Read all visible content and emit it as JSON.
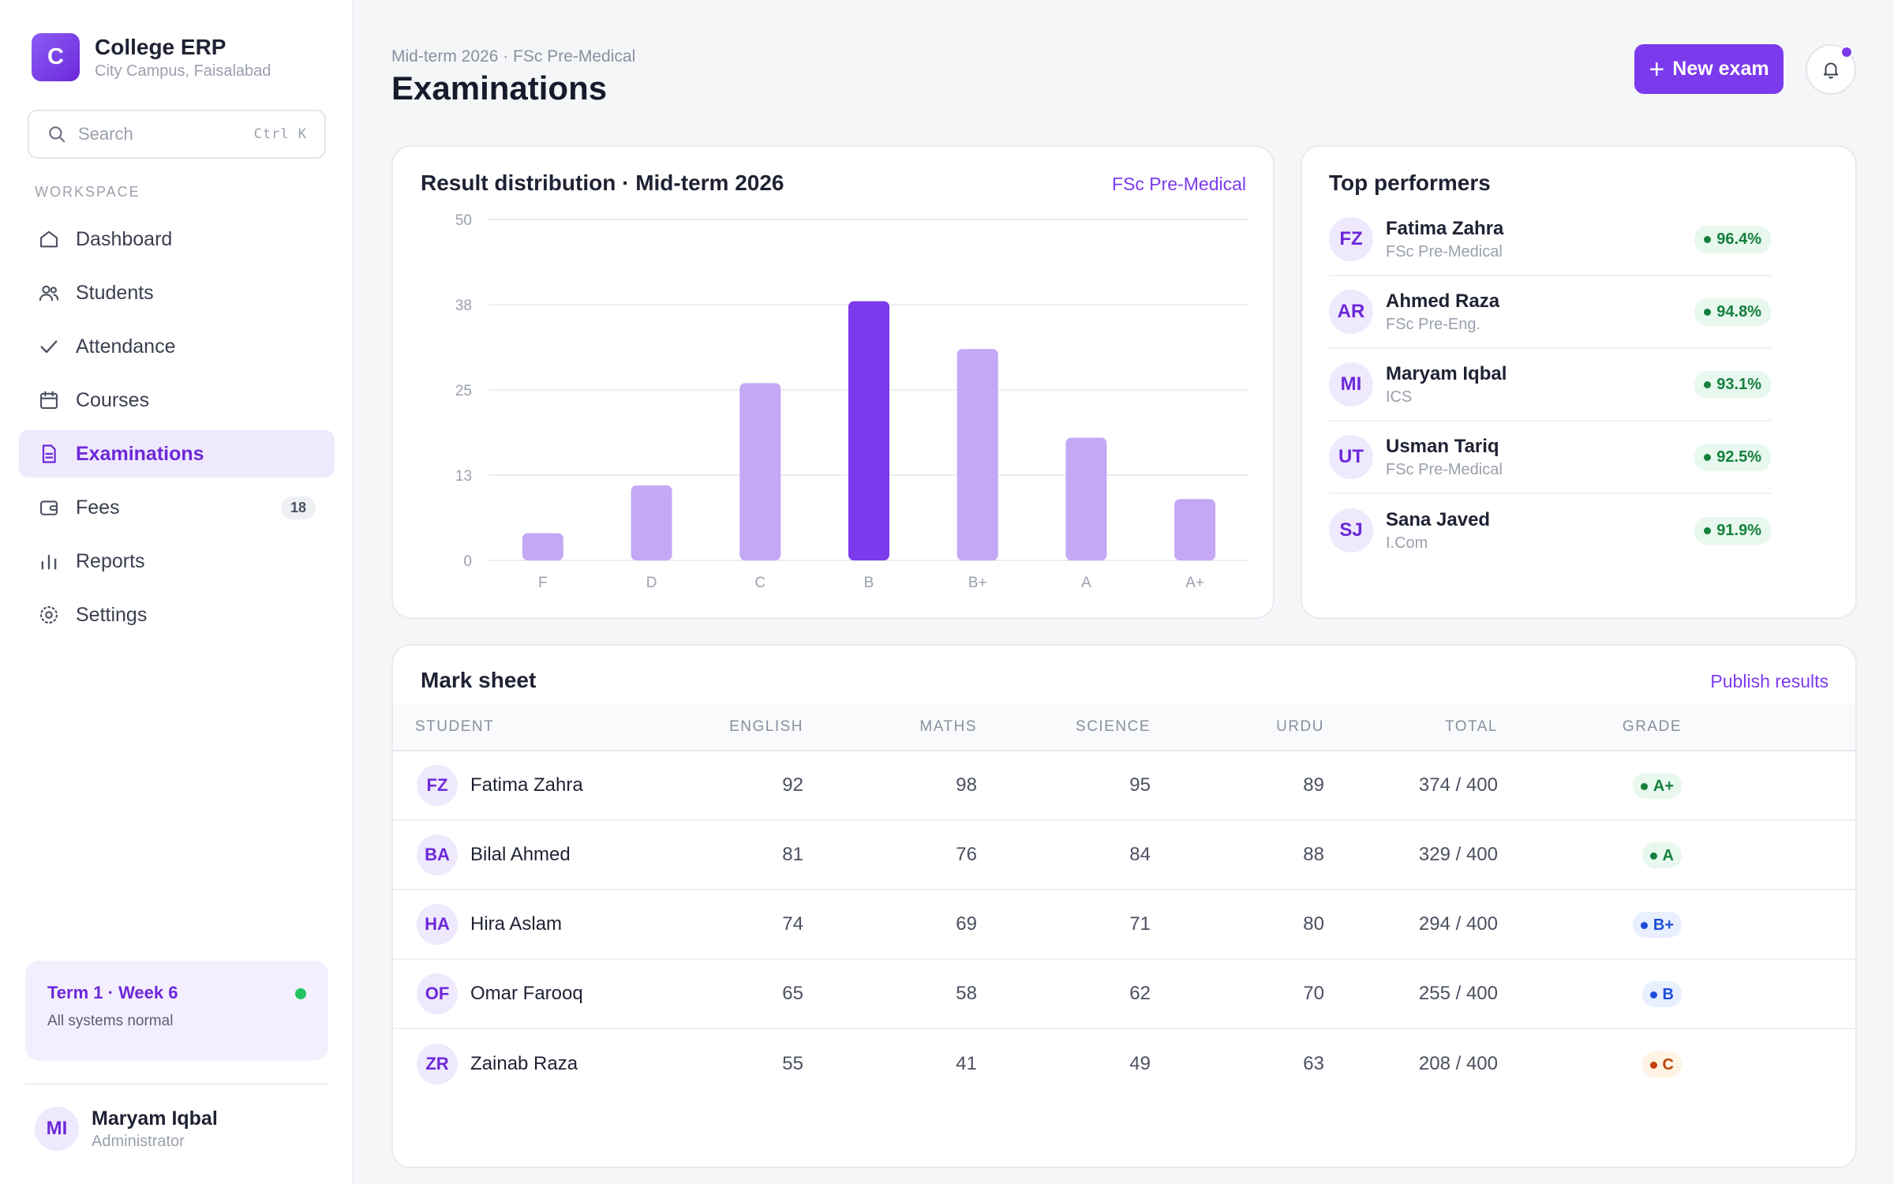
{
  "app": {
    "name": "College ERP",
    "campus": "City Campus, Faisalabad",
    "logo_letter": "C"
  },
  "search": {
    "placeholder": "Search",
    "shortcut": "Ctrl K"
  },
  "sidebar": {
    "section_label": "WORKSPACE",
    "items": [
      {
        "label": "Dashboard",
        "icon": "home-icon",
        "active": false
      },
      {
        "label": "Students",
        "icon": "users-icon",
        "active": false
      },
      {
        "label": "Attendance",
        "icon": "check-icon",
        "active": false
      },
      {
        "label": "Courses",
        "icon": "calendar-icon",
        "active": false
      },
      {
        "label": "Examinations",
        "icon": "document-icon",
        "active": true
      },
      {
        "label": "Fees",
        "icon": "wallet-icon",
        "active": false,
        "badge": "18"
      },
      {
        "label": "Reports",
        "icon": "bar-chart-icon",
        "active": false
      },
      {
        "label": "Settings",
        "icon": "gear-icon",
        "active": false
      }
    ],
    "status": {
      "title": "Term 1 · Week 6",
      "subtitle": "All systems normal",
      "indicator_color": "#22c55e"
    },
    "user": {
      "initials": "MI",
      "name": "Maryam Iqbal",
      "role": "Administrator"
    }
  },
  "header": {
    "breadcrumb": "Mid-term 2026 · FSc Pre-Medical",
    "title": "Examinations",
    "primary_action": "New exam",
    "notifications_unread": true
  },
  "chart_card": {
    "title": "Result distribution · Mid-term 2026",
    "filter_link": "FSc Pre-Medical"
  },
  "chart_data": {
    "type": "bar",
    "categories": [
      "F",
      "D",
      "C",
      "B",
      "B+",
      "A",
      "A+"
    ],
    "values": [
      4,
      11,
      26,
      38,
      31,
      18,
      9
    ],
    "highlight_index": 3,
    "ylim": [
      0,
      50
    ],
    "yticks": [
      "0",
      "13",
      "25",
      "38",
      "50"
    ],
    "ytick_values": [
      0,
      12.5,
      25,
      37.5,
      50
    ],
    "grid": true,
    "colors": {
      "bar": "#c4a8f5",
      "highlight": "#7c3aed"
    }
  },
  "performers": {
    "title": "Top performers",
    "items": [
      {
        "initials": "FZ",
        "name": "Fatima Zahra",
        "program": "FSc Pre-Medical",
        "score": "96.4%"
      },
      {
        "initials": "AR",
        "name": "Ahmed Raza",
        "program": "FSc Pre-Eng.",
        "score": "94.8%"
      },
      {
        "initials": "MI",
        "name": "Maryam Iqbal",
        "program": "ICS",
        "score": "93.1%"
      },
      {
        "initials": "UT",
        "name": "Usman Tariq",
        "program": "FSc Pre-Medical",
        "score": "92.5%"
      },
      {
        "initials": "SJ",
        "name": "Sana Javed",
        "program": "I.Com",
        "score": "91.9%"
      }
    ]
  },
  "mark_sheet": {
    "title": "Mark sheet",
    "action": "Publish results",
    "columns": [
      "STUDENT",
      "ENGLISH",
      "MATHS",
      "SCIENCE",
      "URDU",
      "TOTAL",
      "GRADE"
    ],
    "rows": [
      {
        "initials": "FZ",
        "name": "Fatima Zahra",
        "english": "92",
        "maths": "98",
        "science": "95",
        "urdu": "89",
        "total": "374 / 400",
        "grade": "A+",
        "grade_color": "green"
      },
      {
        "initials": "BA",
        "name": "Bilal Ahmed",
        "english": "81",
        "maths": "76",
        "science": "84",
        "urdu": "88",
        "total": "329 / 400",
        "grade": "A",
        "grade_color": "green"
      },
      {
        "initials": "HA",
        "name": "Hira Aslam",
        "english": "74",
        "maths": "69",
        "science": "71",
        "urdu": "80",
        "total": "294 / 400",
        "grade": "B+",
        "grade_color": "blue"
      },
      {
        "initials": "OF",
        "name": "Omar Farooq",
        "english": "65",
        "maths": "58",
        "science": "62",
        "urdu": "70",
        "total": "255 / 400",
        "grade": "B",
        "grade_color": "blue"
      },
      {
        "initials": "ZR",
        "name": "Zainab Raza",
        "english": "55",
        "maths": "41",
        "science": "49",
        "urdu": "63",
        "total": "208 / 400",
        "grade": "C",
        "grade_color": "orange"
      }
    ]
  }
}
